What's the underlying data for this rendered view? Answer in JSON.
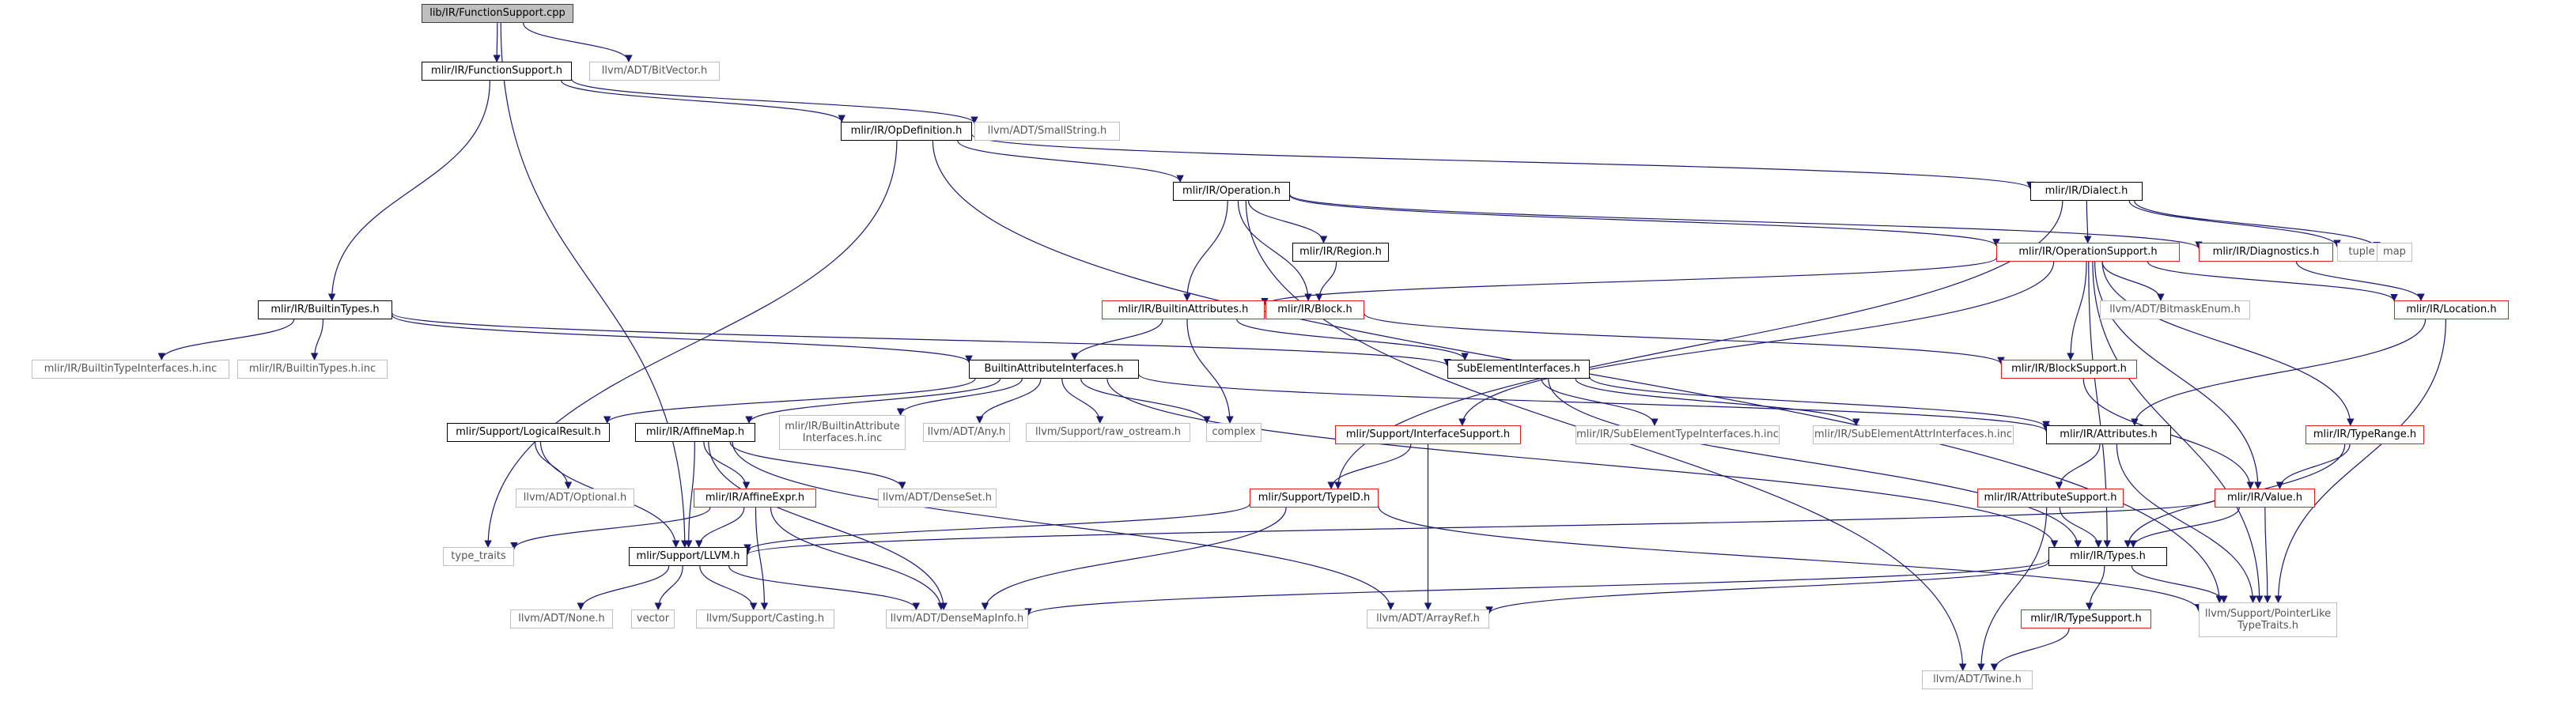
{
  "graph": {
    "nodes": [
      {
        "id": "fs_cpp",
        "label": "lib/IR/FunctionSupport.cpp",
        "kind": "root"
      },
      {
        "id": "fs_h",
        "label": "mlir/IR/FunctionSupport.h",
        "kind": "doc"
      },
      {
        "id": "bitvector",
        "label": "llvm/ADT/BitVector.h",
        "kind": "std"
      },
      {
        "id": "opdef",
        "label": "mlir/IR/OpDefinition.h",
        "kind": "doc"
      },
      {
        "id": "smallstring",
        "label": "llvm/ADT/SmallString.h",
        "kind": "std"
      },
      {
        "id": "operation",
        "label": "mlir/IR/Operation.h",
        "kind": "doc"
      },
      {
        "id": "dialect",
        "label": "mlir/IR/Dialect.h",
        "kind": "doc"
      },
      {
        "id": "region",
        "label": "mlir/IR/Region.h",
        "kind": "doc"
      },
      {
        "id": "opsupport",
        "label": "mlir/IR/OperationSupport.h",
        "kind": "red"
      },
      {
        "id": "diagnostics",
        "label": "mlir/IR/Diagnostics.h",
        "kind": "red"
      },
      {
        "id": "tuple",
        "label": "tuple",
        "kind": "std"
      },
      {
        "id": "map",
        "label": "map",
        "kind": "std"
      },
      {
        "id": "builtintypes",
        "label": "mlir/IR/BuiltinTypes.h",
        "kind": "doc"
      },
      {
        "id": "builtinattrs",
        "label": "mlir/IR/BuiltinAttributes.h",
        "kind": "red"
      },
      {
        "id": "block",
        "label": "mlir/IR/Block.h",
        "kind": "red"
      },
      {
        "id": "location",
        "label": "mlir/IR/Location.h",
        "kind": "red"
      },
      {
        "id": "bitmaskenum",
        "label": "llvm/ADT/BitmaskEnum.h",
        "kind": "std"
      },
      {
        "id": "btiface_inc",
        "label": "mlir/IR/BuiltinTypeInterfaces.h.inc",
        "kind": "std"
      },
      {
        "id": "bt_inc",
        "label": "mlir/IR/BuiltinTypes.h.inc",
        "kind": "std"
      },
      {
        "id": "baiface",
        "label": "BuiltinAttributeInterfaces.h",
        "kind": "doc"
      },
      {
        "id": "subelem",
        "label": "SubElementInterfaces.h",
        "kind": "doc"
      },
      {
        "id": "blocksupport",
        "label": "mlir/IR/BlockSupport.h",
        "kind": "red"
      },
      {
        "id": "logicalresult",
        "label": "mlir/Support/LogicalResult.h",
        "kind": "doc"
      },
      {
        "id": "affinemap",
        "label": "mlir/IR/AffineMap.h",
        "kind": "doc"
      },
      {
        "id": "baiface_inc",
        "label": "mlir/IR/BuiltinAttribute Interfaces.h.inc",
        "kind": "std2"
      },
      {
        "id": "any",
        "label": "llvm/ADT/Any.h",
        "kind": "std"
      },
      {
        "id": "raw_ostream",
        "label": "llvm/Support/raw_ostream.h",
        "kind": "std"
      },
      {
        "id": "complex",
        "label": "complex",
        "kind": "std"
      },
      {
        "id": "ifacesupport",
        "label": "mlir/Support/InterfaceSupport.h",
        "kind": "red"
      },
      {
        "id": "setiface_inc",
        "label": "mlir/IR/SubElementTypeInterfaces.h.inc",
        "kind": "std"
      },
      {
        "id": "seaiface_inc",
        "label": "mlir/IR/SubElementAttrInterfaces.h.inc",
        "kind": "std"
      },
      {
        "id": "attributes",
        "label": "mlir/IR/Attributes.h",
        "kind": "doc"
      },
      {
        "id": "typerange",
        "label": "mlir/IR/TypeRange.h",
        "kind": "red"
      },
      {
        "id": "optional",
        "label": "llvm/ADT/Optional.h",
        "kind": "std"
      },
      {
        "id": "affineexpr",
        "label": "mlir/IR/AffineExpr.h",
        "kind": "red"
      },
      {
        "id": "denseset",
        "label": "llvm/ADT/DenseSet.h",
        "kind": "std"
      },
      {
        "id": "typeid",
        "label": "mlir/Support/TypeID.h",
        "kind": "red"
      },
      {
        "id": "attrsupport",
        "label": "mlir/IR/AttributeSupport.h",
        "kind": "red"
      },
      {
        "id": "value",
        "label": "mlir/IR/Value.h",
        "kind": "red"
      },
      {
        "id": "type_traits",
        "label": "type_traits",
        "kind": "std"
      },
      {
        "id": "llvm_h",
        "label": "mlir/Support/LLVM.h",
        "kind": "doc"
      },
      {
        "id": "types",
        "label": "mlir/IR/Types.h",
        "kind": "doc"
      },
      {
        "id": "none",
        "label": "llvm/ADT/None.h",
        "kind": "std"
      },
      {
        "id": "vector",
        "label": "vector",
        "kind": "std"
      },
      {
        "id": "casting",
        "label": "llvm/Support/Casting.h",
        "kind": "std"
      },
      {
        "id": "densemapinfo",
        "label": "llvm/ADT/DenseMapInfo.h",
        "kind": "std"
      },
      {
        "id": "arrayref",
        "label": "llvm/ADT/ArrayRef.h",
        "kind": "std"
      },
      {
        "id": "typesupport",
        "label": "mlir/IR/TypeSupport.h",
        "kind": "red"
      },
      {
        "id": "ptrlike",
        "label": "llvm/Support/PointerLike TypeTraits.h",
        "kind": "std2"
      },
      {
        "id": "twine",
        "label": "llvm/ADT/Twine.h",
        "kind": "std"
      }
    ],
    "edges": [
      [
        "fs_cpp",
        "fs_h"
      ],
      [
        "fs_cpp",
        "bitvector"
      ],
      [
        "fs_cpp",
        "llvm_h"
      ],
      [
        "fs_h",
        "opdef"
      ],
      [
        "fs_h",
        "smallstring"
      ],
      [
        "fs_h",
        "builtintypes"
      ],
      [
        "opdef",
        "operation"
      ],
      [
        "opdef",
        "dialect"
      ],
      [
        "opdef",
        "type_traits"
      ],
      [
        "opdef",
        "ptrlike"
      ],
      [
        "operation",
        "region"
      ],
      [
        "operation",
        "block"
      ],
      [
        "operation",
        "builtinattrs"
      ],
      [
        "operation",
        "opsupport"
      ],
      [
        "operation",
        "diagnostics"
      ],
      [
        "operation",
        "twine"
      ],
      [
        "dialect",
        "opsupport"
      ],
      [
        "dialect",
        "tuple"
      ],
      [
        "dialect",
        "map"
      ],
      [
        "dialect",
        "typeid"
      ],
      [
        "region",
        "block"
      ],
      [
        "opsupport",
        "builtinattrs"
      ],
      [
        "opsupport",
        "location"
      ],
      [
        "opsupport",
        "bitmaskenum"
      ],
      [
        "opsupport",
        "blocksupport"
      ],
      [
        "opsupport",
        "ifacesupport"
      ],
      [
        "opsupport",
        "typerange"
      ],
      [
        "opsupport",
        "value"
      ],
      [
        "opsupport",
        "types"
      ],
      [
        "opsupport",
        "ptrlike"
      ],
      [
        "diagnostics",
        "location"
      ],
      [
        "builtintypes",
        "btiface_inc"
      ],
      [
        "builtintypes",
        "bt_inc"
      ],
      [
        "builtintypes",
        "baiface"
      ],
      [
        "builtintypes",
        "subelem"
      ],
      [
        "builtinattrs",
        "baiface"
      ],
      [
        "builtinattrs",
        "complex"
      ],
      [
        "builtinattrs",
        "subelem"
      ],
      [
        "block",
        "blocksupport"
      ],
      [
        "location",
        "attributes"
      ],
      [
        "location",
        "ptrlike"
      ],
      [
        "baiface",
        "logicalresult"
      ],
      [
        "baiface",
        "affinemap"
      ],
      [
        "baiface",
        "baiface_inc"
      ],
      [
        "baiface",
        "any"
      ],
      [
        "baiface",
        "raw_ostream"
      ],
      [
        "baiface",
        "complex"
      ],
      [
        "baiface",
        "attributes"
      ],
      [
        "baiface",
        "types"
      ],
      [
        "subelem",
        "setiface_inc"
      ],
      [
        "subelem",
        "seaiface_inc"
      ],
      [
        "subelem",
        "attributes"
      ],
      [
        "subelem",
        "types"
      ],
      [
        "blocksupport",
        "value"
      ],
      [
        "logicalresult",
        "optional"
      ],
      [
        "logicalresult",
        "llvm_h"
      ],
      [
        "affinemap",
        "affineexpr"
      ],
      [
        "affinemap",
        "denseset"
      ],
      [
        "affinemap",
        "densemapinfo"
      ],
      [
        "affinemap",
        "llvm_h"
      ],
      [
        "affinemap",
        "arrayref"
      ],
      [
        "ifacesupport",
        "typeid"
      ],
      [
        "ifacesupport",
        "arrayref"
      ],
      [
        "attributes",
        "attrsupport"
      ],
      [
        "attributes",
        "ptrlike"
      ],
      [
        "typerange",
        "value"
      ],
      [
        "typerange",
        "types"
      ],
      [
        "affineexpr",
        "llvm_h"
      ],
      [
        "affineexpr",
        "casting"
      ],
      [
        "affineexpr",
        "type_traits"
      ],
      [
        "affineexpr",
        "densemapinfo"
      ],
      [
        "typeid",
        "llvm_h"
      ],
      [
        "typeid",
        "densemapinfo"
      ],
      [
        "typeid",
        "ptrlike"
      ],
      [
        "attrsupport",
        "types"
      ],
      [
        "attrsupport",
        "twine"
      ],
      [
        "value",
        "types"
      ],
      [
        "value",
        "llvm_h"
      ],
      [
        "value",
        "ptrlike"
      ],
      [
        "llvm_h",
        "none"
      ],
      [
        "llvm_h",
        "vector"
      ],
      [
        "llvm_h",
        "casting"
      ],
      [
        "llvm_h",
        "densemapinfo"
      ],
      [
        "types",
        "typesupport"
      ],
      [
        "types",
        "densemapinfo"
      ],
      [
        "types",
        "arrayref"
      ],
      [
        "types",
        "ptrlike"
      ],
      [
        "typesupport",
        "twine"
      ]
    ]
  },
  "colors": {
    "edge": "#191970",
    "doc_border": "#000000",
    "red_border": "#e02020",
    "std_border": "#bfbfbf",
    "root_fill": "#bfbfbf"
  }
}
